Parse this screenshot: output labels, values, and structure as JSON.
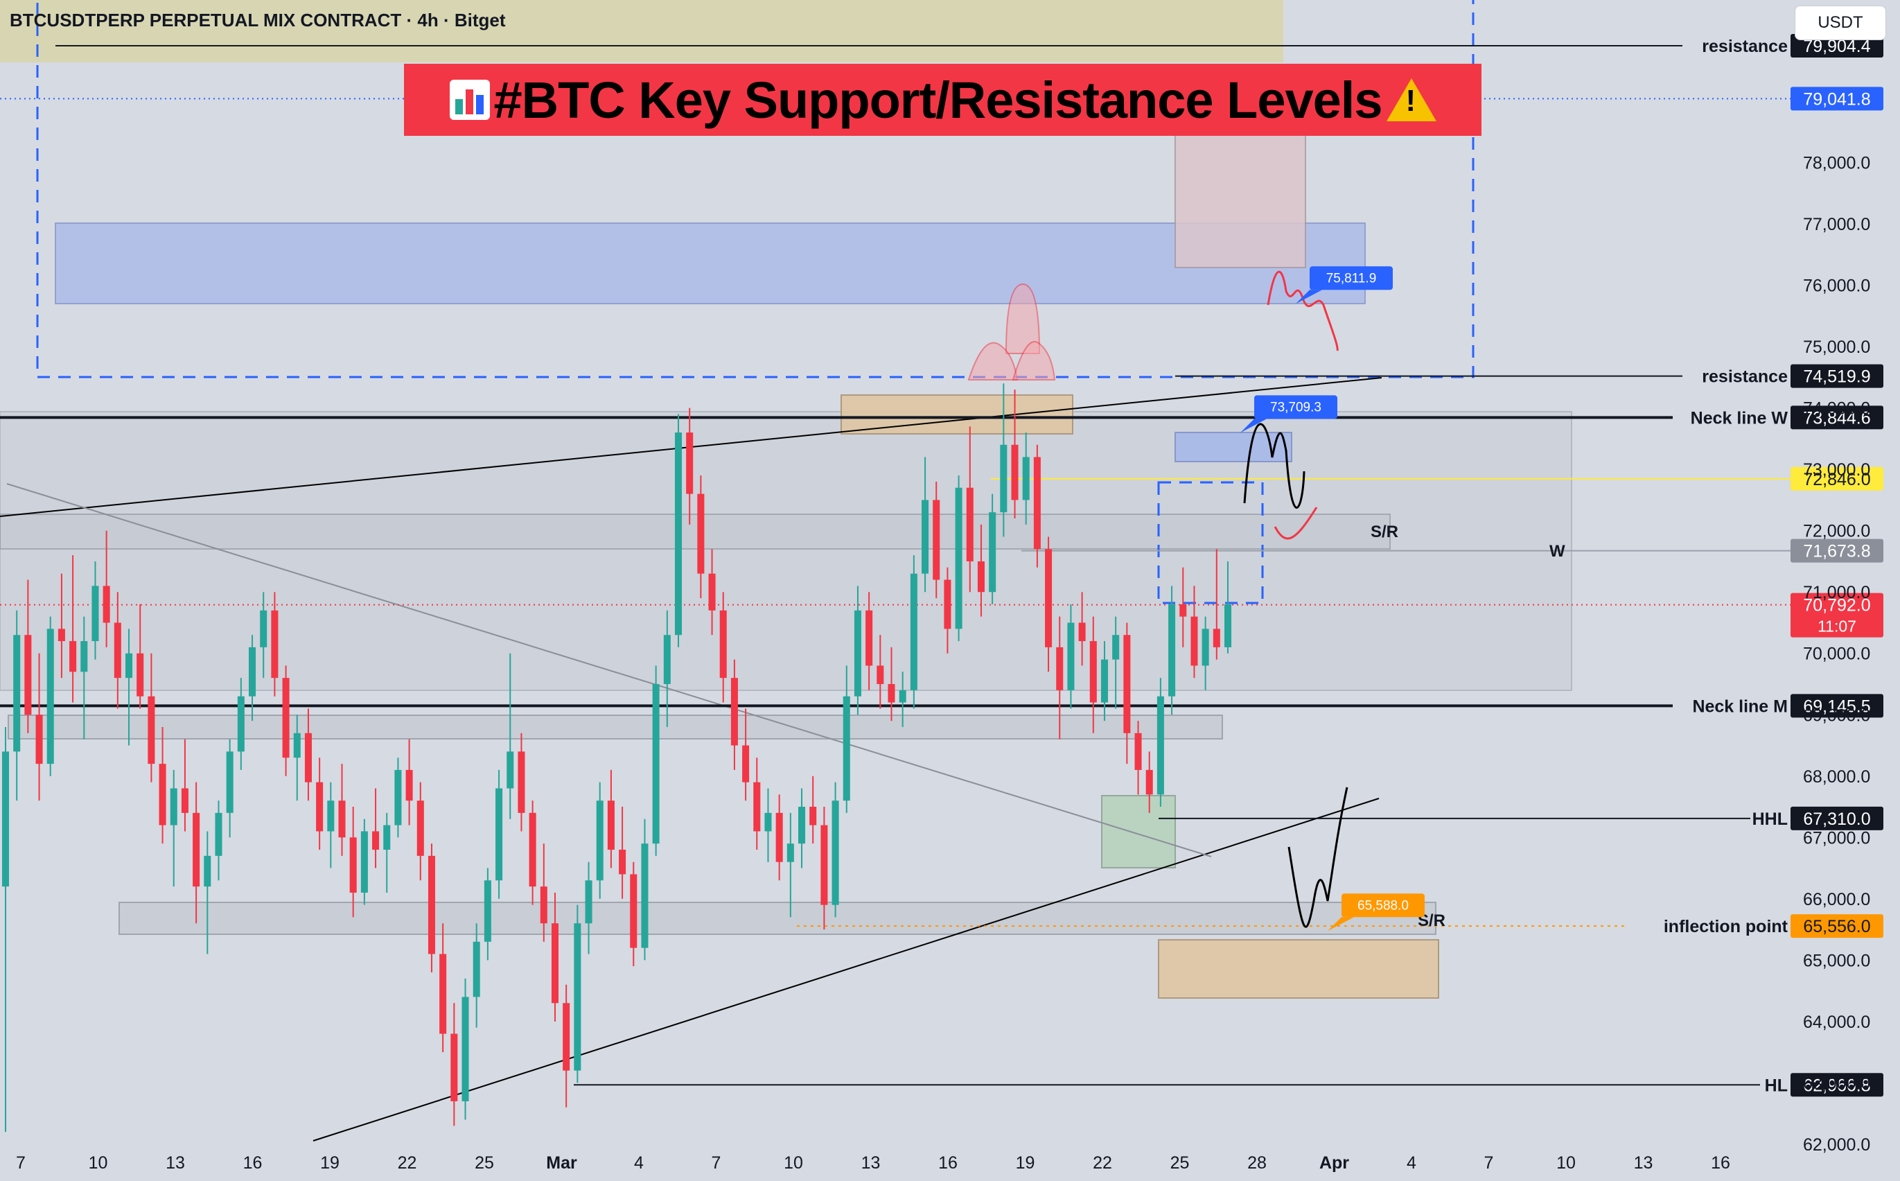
{
  "header": {
    "pair_title": "BTCUSDTPERP PERPETUAL MIX CONTRACT · 4h · Bitget",
    "currency": "USDT"
  },
  "banner": {
    "title": "#BTC Key Support/Resistance Levels"
  },
  "colors": {
    "up": "#26a69a",
    "down": "#f23645",
    "accent_blue": "#2962ff",
    "accent_yellow": "#ffeb3b",
    "accent_orange": "#ff9800"
  },
  "chart_data": {
    "type": "candlestick",
    "yaxis": {
      "min": 61400,
      "max": 80650,
      "ticks": [
        62000,
        63000,
        64000,
        65000,
        66000,
        67000,
        68000,
        69000,
        70000,
        71000,
        72000,
        73000,
        74000,
        75000,
        76000,
        77000,
        78000
      ],
      "tick_labels": [
        "62,000.0",
        "63,000.0",
        "64,000.0",
        "65,000.0",
        "66,000.0",
        "67,000.0",
        "68,000.0",
        "69,000.0",
        "70,000.0",
        "71,000.0",
        "72,000.0",
        "73,000.0",
        "74,000.0",
        "75,000.0",
        "76,000.0",
        "77,000.0",
        "78,000.0"
      ]
    },
    "xaxis": {
      "labels": [
        "7",
        "10",
        "13",
        "16",
        "19",
        "22",
        "25",
        "Mar",
        "4",
        "7",
        "10",
        "13",
        "16",
        "19",
        "22",
        "25",
        "28",
        "Apr",
        "4",
        "7",
        "10",
        "13",
        "16"
      ]
    },
    "price_levels": [
      {
        "label": "resistance",
        "value": "79,904.4",
        "price": 79904.4
      },
      {
        "label": "",
        "value": "79,041.8",
        "price": 79041.8,
        "style": "blue"
      },
      {
        "label": "resistance",
        "value": "74,519.9",
        "price": 74519.9
      },
      {
        "label": "Neck line W",
        "value": "73,844.6",
        "price": 73844.6
      },
      {
        "label": "",
        "value": "72,846.0",
        "price": 72846.0,
        "style": "yellow"
      },
      {
        "label": "",
        "value": "71,673.8",
        "price": 71673.8,
        "style": "gray"
      },
      {
        "label": "",
        "value": "70,792.0",
        "extra": "11:07",
        "price": 70792.0,
        "style": "red"
      },
      {
        "label": "Neck line M",
        "value": "69,145.5",
        "price": 69145.5
      },
      {
        "label": "HHL",
        "value": "67,310.0",
        "price": 67310.0
      },
      {
        "label": "inflection point",
        "value": "65,556.0",
        "price": 65556.0,
        "style": "orange"
      },
      {
        "label": "HL",
        "value": "62,966.8",
        "price": 62966.8
      }
    ],
    "callouts": [
      {
        "value": "75,811.9",
        "price": 75811.9,
        "color": "#2962ff"
      },
      {
        "value": "73,709.3",
        "price": 73709.3,
        "color": "#2962ff"
      },
      {
        "value": "65,588.0",
        "price": 65588.0,
        "color": "#ff9800"
      }
    ],
    "annotations": [
      "S/R",
      "W",
      "S/R"
    ],
    "series": [
      {
        "ohlc": [
          [
            66200,
            68800,
            62200,
            68400
          ],
          [
            68400,
            70700,
            67600,
            70300
          ],
          [
            70300,
            71200,
            68700,
            69000
          ],
          [
            69000,
            70000,
            67600,
            68200
          ],
          [
            68200,
            70600,
            68000,
            70400
          ],
          [
            70400,
            71300,
            69600,
            70200
          ],
          [
            70200,
            71600,
            69200,
            69700
          ],
          [
            69700,
            70600,
            68600,
            70200
          ],
          [
            70200,
            71500,
            69900,
            71100
          ],
          [
            71100,
            72000,
            70100,
            70500
          ],
          [
            70500,
            71000,
            69100,
            69600
          ],
          [
            69600,
            70400,
            68500,
            70000
          ],
          [
            70000,
            70800,
            69100,
            69300
          ],
          [
            69300,
            70000,
            67900,
            68200
          ],
          [
            68200,
            68800,
            66900,
            67200
          ],
          [
            67200,
            68100,
            66200,
            67800
          ],
          [
            67800,
            68600,
            67100,
            67400
          ],
          [
            67400,
            67900,
            65600,
            66200
          ],
          [
            66200,
            67100,
            65100,
            66700
          ],
          [
            66700,
            67600,
            66300,
            67400
          ],
          [
            67400,
            68600,
            67000,
            68400
          ],
          [
            68400,
            69600,
            68100,
            69300
          ],
          [
            69300,
            70300,
            68900,
            70100
          ],
          [
            70100,
            71000,
            69600,
            70700
          ],
          [
            70700,
            71000,
            69300,
            69600
          ],
          [
            69600,
            69800,
            68000,
            68300
          ],
          [
            68300,
            69000,
            67600,
            68700
          ],
          [
            68700,
            69100,
            67600,
            67900
          ],
          [
            67900,
            68300,
            66800,
            67100
          ],
          [
            67100,
            67900,
            66500,
            67600
          ],
          [
            67600,
            68200,
            66700,
            67000
          ],
          [
            67000,
            67500,
            65700,
            66100
          ],
          [
            66100,
            67300,
            65900,
            67100
          ],
          [
            67100,
            67800,
            66500,
            66800
          ],
          [
            66800,
            67400,
            66100,
            67200
          ],
          [
            67200,
            68300,
            67000,
            68100
          ],
          [
            68100,
            68600,
            67200,
            67600
          ],
          [
            67600,
            67900,
            66300,
            66700
          ],
          [
            66700,
            66900,
            64800,
            65100
          ],
          [
            65100,
            65600,
            63500,
            63800
          ],
          [
            63800,
            64300,
            62300,
            62700
          ],
          [
            62700,
            64700,
            62400,
            64400
          ],
          [
            64400,
            65600,
            63900,
            65300
          ],
          [
            65300,
            66500,
            65000,
            66300
          ],
          [
            66300,
            68100,
            66000,
            67800
          ],
          [
            67800,
            70000,
            67300,
            68400
          ],
          [
            68400,
            68700,
            67100,
            67400
          ],
          [
            67400,
            67600,
            65900,
            66200
          ],
          [
            66200,
            66900,
            65300,
            65600
          ],
          [
            65600,
            66100,
            64000,
            64300
          ],
          [
            64300,
            64600,
            62600,
            63200
          ],
          [
            63200,
            65900,
            63000,
            65600
          ],
          [
            65600,
            66600,
            65100,
            66300
          ],
          [
            66300,
            67900,
            66000,
            67600
          ],
          [
            67600,
            68100,
            66500,
            66800
          ],
          [
            66800,
            67500,
            66000,
            66400
          ],
          [
            66400,
            66600,
            64900,
            65200
          ],
          [
            65200,
            67300,
            65000,
            66900
          ],
          [
            66900,
            69800,
            66700,
            69500
          ],
          [
            69500,
            70700,
            68800,
            70300
          ],
          [
            70300,
            73900,
            70100,
            73600
          ],
          [
            73600,
            74000,
            72100,
            72600
          ],
          [
            72600,
            72900,
            70900,
            71300
          ],
          [
            71300,
            71700,
            70300,
            70700
          ],
          [
            70700,
            71000,
            69200,
            69600
          ],
          [
            69600,
            69900,
            68100,
            68500
          ],
          [
            68500,
            69100,
            67600,
            67900
          ],
          [
            67900,
            68300,
            66800,
            67100
          ],
          [
            67100,
            67800,
            66600,
            67400
          ],
          [
            67400,
            67700,
            66300,
            66600
          ],
          [
            66600,
            67400,
            65700,
            66900
          ],
          [
            66900,
            67800,
            66500,
            67500
          ],
          [
            67500,
            68000,
            66900,
            67200
          ],
          [
            67200,
            67500,
            65500,
            65900
          ],
          [
            65900,
            67900,
            65700,
            67600
          ],
          [
            67600,
            69800,
            67400,
            69300
          ],
          [
            69300,
            71100,
            69000,
            70700
          ],
          [
            70700,
            71000,
            69400,
            69800
          ],
          [
            69800,
            70300,
            69100,
            69500
          ],
          [
            69500,
            70100,
            68900,
            69200
          ],
          [
            69200,
            69700,
            68800,
            69400
          ],
          [
            69400,
            71600,
            69100,
            71300
          ],
          [
            71300,
            73200,
            71000,
            72500
          ],
          [
            72500,
            72800,
            70900,
            71200
          ],
          [
            71200,
            71400,
            70000,
            70400
          ],
          [
            70400,
            72900,
            70200,
            72700
          ],
          [
            72700,
            73700,
            71000,
            71500
          ],
          [
            71500,
            72100,
            70600,
            71000
          ],
          [
            71000,
            72600,
            70800,
            72300
          ],
          [
            72300,
            74400,
            71900,
            73400
          ],
          [
            73400,
            74300,
            72200,
            72500
          ],
          [
            72500,
            73600,
            72100,
            73200
          ],
          [
            73200,
            73400,
            71400,
            71700
          ],
          [
            71700,
            71900,
            69700,
            70100
          ],
          [
            70100,
            70600,
            68600,
            69400
          ],
          [
            69400,
            70800,
            69100,
            70500
          ],
          [
            70500,
            71000,
            69800,
            70200
          ],
          [
            70200,
            70600,
            68700,
            69200
          ],
          [
            69200,
            70200,
            68900,
            69900
          ],
          [
            69900,
            70600,
            69100,
            70300
          ],
          [
            70300,
            70500,
            68200,
            68700
          ],
          [
            68700,
            68900,
            67700,
            68100
          ],
          [
            68100,
            68400,
            67400,
            67700
          ],
          [
            67700,
            69600,
            67500,
            69300
          ],
          [
            69300,
            71100,
            69000,
            70800
          ],
          [
            70800,
            71400,
            70100,
            70600
          ],
          [
            70600,
            71100,
            69600,
            69800
          ],
          [
            69800,
            70600,
            69400,
            70400
          ],
          [
            70400,
            71700,
            69900,
            70100
          ],
          [
            70100,
            71500,
            70000,
            70800
          ]
        ]
      }
    ]
  }
}
